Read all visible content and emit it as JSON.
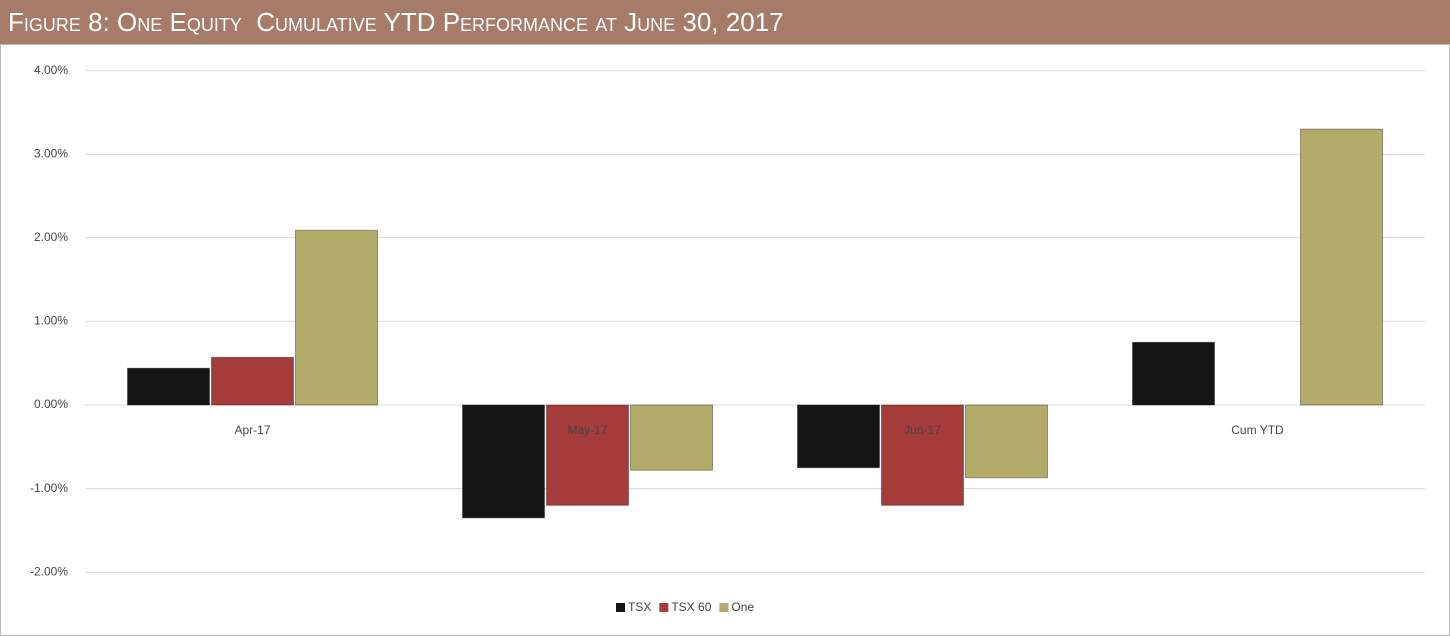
{
  "chart_data": {
    "type": "bar",
    "title": "Figure 8: One Equity  Cumulative YTD Performance at June 30, 2017",
    "categories": [
      "Apr-17",
      "May-17",
      "Jun-17",
      "Cum YTD"
    ],
    "series": [
      {
        "name": "TSX",
        "color": "#151515",
        "values": [
          0.44,
          -1.35,
          -0.75,
          0.75
        ]
      },
      {
        "name": "TSX 60",
        "color": "#a53b3b",
        "values": [
          0.57,
          -1.2,
          -1.2,
          null
        ]
      },
      {
        "name": "One",
        "color": "#b3ab6a",
        "values": [
          2.09,
          -0.78,
          -0.87,
          3.3
        ]
      }
    ],
    "ylim": [
      -2.4,
      4
    ],
    "yticks": [
      {
        "value": 4,
        "label": "4.00%"
      },
      {
        "value": 3,
        "label": "3.00%"
      },
      {
        "value": 2,
        "label": "2.00%"
      },
      {
        "value": 1,
        "label": "1.00%"
      },
      {
        "value": 0,
        "label": "0.00%"
      },
      {
        "value": -1,
        "label": "-1.00%"
      },
      {
        "value": -2,
        "label": "-2.00%"
      }
    ],
    "grid": true,
    "legend": "bottom"
  }
}
